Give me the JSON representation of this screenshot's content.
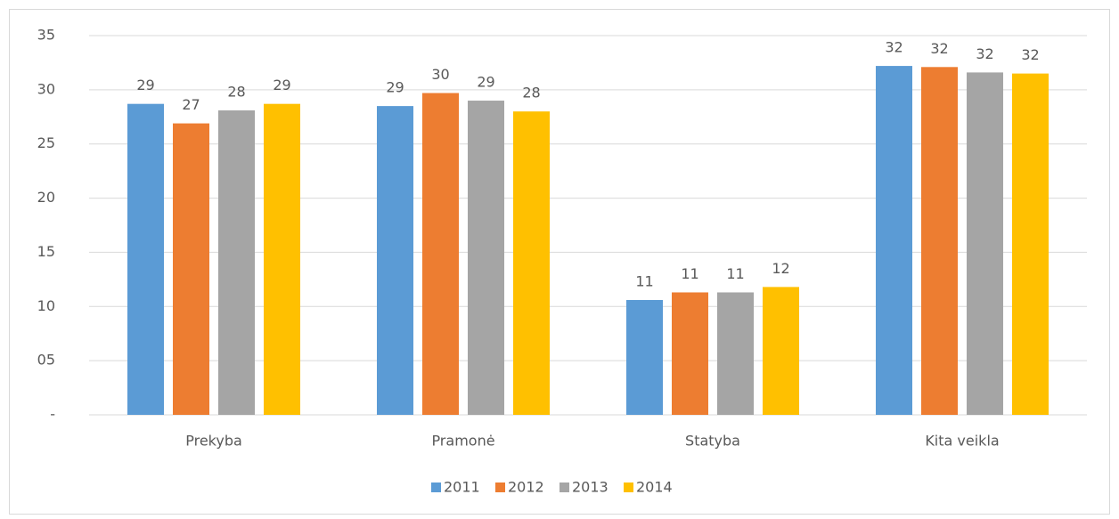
{
  "chart_data": {
    "type": "bar",
    "categories": [
      "Prekyba",
      "Pramonė",
      "Statyba",
      "Kita veikla"
    ],
    "series": [
      {
        "name": "2011",
        "color": "#5b9bd5",
        "values": [
          28.7,
          28.5,
          10.6,
          32.2
        ],
        "value_labels": [
          "29",
          "29",
          "11",
          "32"
        ]
      },
      {
        "name": "2012",
        "color": "#ed7d31",
        "values": [
          26.9,
          29.7,
          11.3,
          32.1
        ],
        "value_labels": [
          "27",
          "30",
          "11",
          "32"
        ]
      },
      {
        "name": "2013",
        "color": "#a5a5a5",
        "values": [
          28.1,
          29.0,
          11.3,
          31.6
        ],
        "value_labels": [
          "28",
          "29",
          "11",
          "32"
        ]
      },
      {
        "name": "2014",
        "color": "#ffc000",
        "values": [
          28.7,
          28.0,
          11.8,
          31.5
        ],
        "value_labels": [
          "29",
          "28",
          "12",
          "32"
        ]
      }
    ],
    "ylim": [
      0,
      35
    ],
    "yticks": [
      {
        "value": 0,
        "label": "-"
      },
      {
        "value": 5,
        "label": "05"
      },
      10,
      15,
      20,
      25,
      30,
      35
    ],
    "grid": true,
    "legend": "bottom"
  }
}
